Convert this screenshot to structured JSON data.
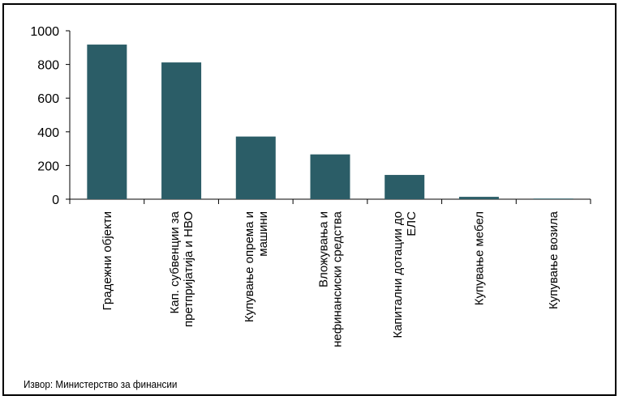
{
  "source": "Извор: Министерство за финансии",
  "colors": {
    "bar": "#2b5d67",
    "axis": "#000000",
    "text": "#000000"
  },
  "chart_data": {
    "type": "bar",
    "categories": [
      "Градежни објекти",
      "Кап. субвенции за претпријатија и НВО",
      "Купување опрема и машини",
      "Вложувања и нефинансиски средства",
      "Капитални дотации до ЕЛС",
      "Купување мебел",
      "Купување возила"
    ],
    "category_lines": [
      [
        "Градежни објекти"
      ],
      [
        "Кап. субвенции за",
        "претпријатија и НВО"
      ],
      [
        "Купување опрема и",
        "машини"
      ],
      [
        "Вложувања и",
        "нефинансиски средства"
      ],
      [
        "Капитални дотации до",
        "ЕЛС"
      ],
      [
        "Купување мебел"
      ],
      [
        "Купување возила"
      ]
    ],
    "values": [
      918,
      812,
      372,
      266,
      144,
      14,
      3
    ],
    "yticks": [
      0,
      200,
      400,
      600,
      800,
      1000
    ],
    "ylim": [
      0,
      1000
    ],
    "title": "",
    "xlabel": "",
    "ylabel": "",
    "grid": false,
    "legend": "none"
  }
}
